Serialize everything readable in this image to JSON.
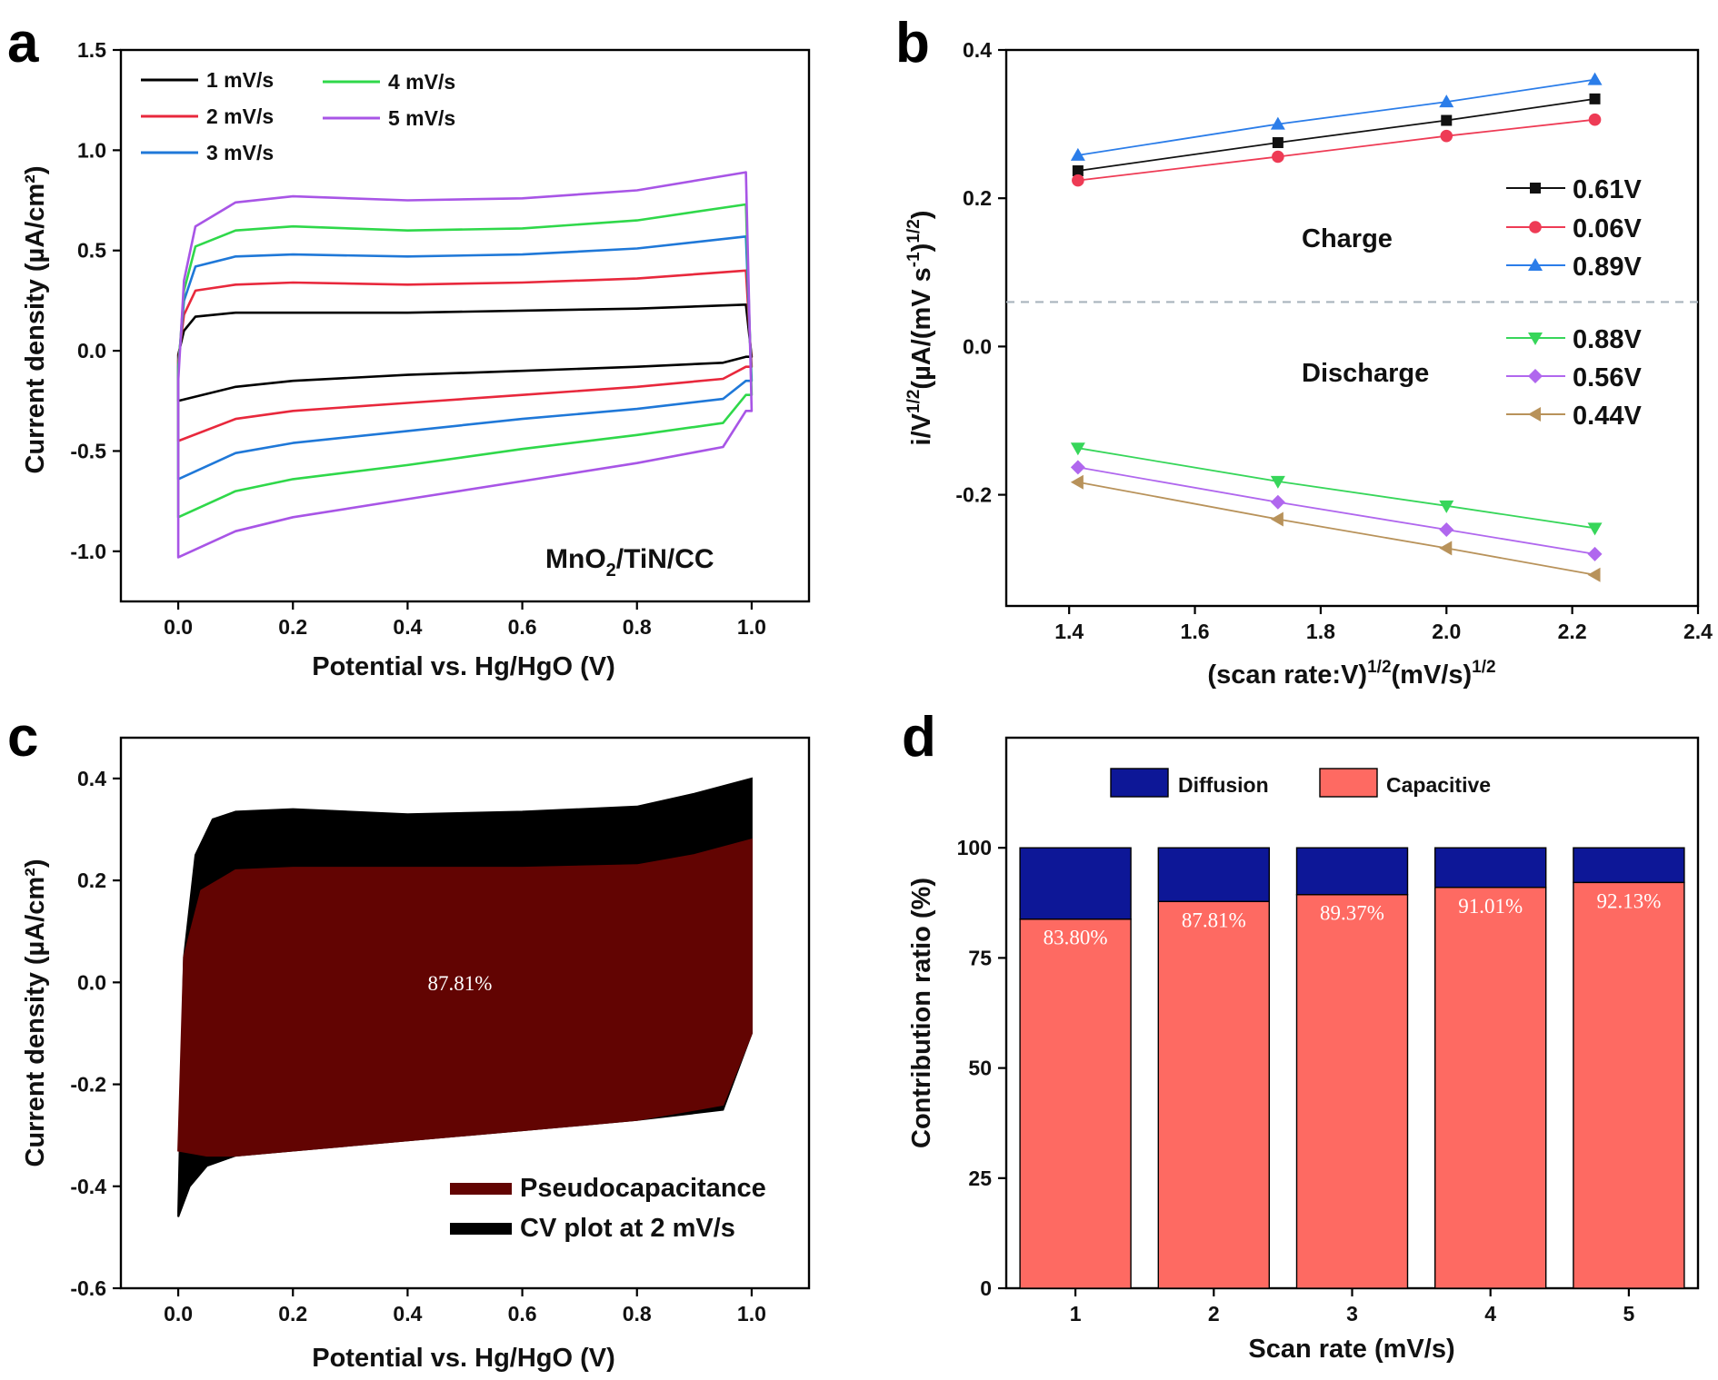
{
  "figure": {
    "panels": [
      {
        "letter": "a"
      },
      {
        "letter": "b"
      },
      {
        "letter": "c"
      },
      {
        "letter": "d"
      }
    ]
  },
  "chart_data": [
    {
      "id": "a",
      "type": "line",
      "xlabel": "Potential vs. Hg/HgO (V)",
      "ylabel": "Current density (µA/cm²)",
      "xlim": [
        -0.1,
        1.1
      ],
      "ylim": [
        -1.25,
        1.5
      ],
      "xticks": [
        0.0,
        0.2,
        0.4,
        0.6,
        0.8,
        1.0
      ],
      "xtick_labels": [
        "0.0",
        "0.2",
        "0.4",
        "0.6",
        "0.8",
        "1.0"
      ],
      "yticks": [
        -1.0,
        -0.5,
        0.0,
        0.5,
        1.0,
        1.5
      ],
      "ytick_labels": [
        "-1.0",
        "-0.5",
        "0.0",
        "0.5",
        "1.0",
        "1.5"
      ],
      "annotation": "MnO₂/TiN/CC",
      "legend_position": "top-left",
      "series": [
        {
          "name": "1 mV/s",
          "color": "#000000",
          "upper_x": [
            0.0,
            0.01,
            0.03,
            0.1,
            0.2,
            0.4,
            0.6,
            0.8,
            0.99
          ],
          "upper_y": [
            -0.02,
            0.1,
            0.17,
            0.19,
            0.19,
            0.19,
            0.2,
            0.21,
            0.23
          ],
          "lower_x": [
            0.0,
            0.1,
            0.2,
            0.4,
            0.6,
            0.8,
            0.95,
            0.99
          ],
          "lower_y": [
            -0.25,
            -0.18,
            -0.15,
            -0.12,
            -0.1,
            -0.08,
            -0.06,
            -0.03
          ]
        },
        {
          "name": "2 mV/s",
          "color": "#e8283c",
          "upper_x": [
            0.0,
            0.01,
            0.03,
            0.1,
            0.2,
            0.4,
            0.6,
            0.8,
            0.99
          ],
          "upper_y": [
            -0.05,
            0.18,
            0.3,
            0.33,
            0.34,
            0.33,
            0.34,
            0.36,
            0.4
          ],
          "lower_x": [
            0.0,
            0.1,
            0.2,
            0.4,
            0.6,
            0.8,
            0.95,
            0.99
          ],
          "lower_y": [
            -0.45,
            -0.34,
            -0.3,
            -0.26,
            -0.22,
            -0.18,
            -0.14,
            -0.08
          ]
        },
        {
          "name": "3 mV/s",
          "color": "#1f78d8",
          "upper_x": [
            0.0,
            0.01,
            0.03,
            0.1,
            0.2,
            0.4,
            0.6,
            0.8,
            0.99
          ],
          "upper_y": [
            -0.08,
            0.25,
            0.42,
            0.47,
            0.48,
            0.47,
            0.48,
            0.51,
            0.57
          ],
          "lower_x": [
            0.0,
            0.1,
            0.2,
            0.4,
            0.6,
            0.8,
            0.95,
            0.99
          ],
          "lower_y": [
            -0.64,
            -0.51,
            -0.46,
            -0.4,
            -0.34,
            -0.29,
            -0.24,
            -0.15
          ]
        },
        {
          "name": "4 mV/s",
          "color": "#2fd84a",
          "upper_x": [
            0.0,
            0.01,
            0.03,
            0.1,
            0.2,
            0.4,
            0.6,
            0.8,
            0.99
          ],
          "upper_y": [
            -0.1,
            0.3,
            0.52,
            0.6,
            0.62,
            0.6,
            0.61,
            0.65,
            0.73
          ],
          "lower_x": [
            0.0,
            0.1,
            0.2,
            0.4,
            0.6,
            0.8,
            0.95,
            0.99
          ],
          "lower_y": [
            -0.83,
            -0.7,
            -0.64,
            -0.57,
            -0.49,
            -0.42,
            -0.36,
            -0.22
          ]
        },
        {
          "name": "5 mV/s",
          "color": "#a855e6",
          "upper_x": [
            0.0,
            0.01,
            0.03,
            0.1,
            0.2,
            0.4,
            0.6,
            0.8,
            0.99
          ],
          "upper_y": [
            -0.15,
            0.35,
            0.62,
            0.74,
            0.77,
            0.75,
            0.76,
            0.8,
            0.89
          ],
          "lower_x": [
            0.0,
            0.1,
            0.2,
            0.4,
            0.6,
            0.8,
            0.95,
            0.99
          ],
          "lower_y": [
            -1.03,
            -0.9,
            -0.83,
            -0.74,
            -0.65,
            -0.56,
            -0.48,
            -0.3
          ]
        }
      ]
    },
    {
      "id": "b",
      "type": "line",
      "xlabel": "(scan rate:V)¹ᐟ²(mV/s)¹ᐟ²",
      "xlabel_parts": [
        "(scan rate:V)",
        "1/2",
        "(mV/s)",
        "1/2"
      ],
      "ylabel_parts": [
        "i/V",
        "1/2",
        "(µA/(mV s",
        "-1",
        ")",
        "1/2",
        ")"
      ],
      "xlim": [
        1.3,
        2.4
      ],
      "ylim": [
        -0.35,
        0.4
      ],
      "xticks": [
        1.4,
        1.6,
        1.8,
        2.0,
        2.2,
        2.4
      ],
      "xtick_labels": [
        "1.4",
        "1.6",
        "1.8",
        "2.0",
        "2.2",
        "2.4"
      ],
      "yticks": [
        -0.2,
        0.0,
        0.2,
        0.4
      ],
      "ytick_labels": [
        "-0.2",
        "0.0",
        "0.2",
        "0.4"
      ],
      "divider_y": 0.06,
      "group_labels": {
        "charge": "Charge",
        "discharge": "Discharge"
      },
      "legend_position": "right",
      "x": [
        1.414,
        1.732,
        2.0,
        2.236
      ],
      "series": [
        {
          "name": "0.61V",
          "color": "#111111",
          "marker": "square",
          "values": [
            0.237,
            0.275,
            0.305,
            0.334
          ]
        },
        {
          "name": "0.06V",
          "color": "#ee3b55",
          "marker": "circle",
          "values": [
            0.224,
            0.256,
            0.284,
            0.306
          ]
        },
        {
          "name": "0.89V",
          "color": "#2b7de9",
          "marker": "triangle-up",
          "values": [
            0.258,
            0.3,
            0.33,
            0.36
          ]
        },
        {
          "name": "0.88V",
          "color": "#37d65a",
          "marker": "triangle-down",
          "values": [
            -0.137,
            -0.182,
            -0.215,
            -0.245
          ]
        },
        {
          "name": "0.56V",
          "color": "#b067ee",
          "marker": "diamond",
          "values": [
            -0.163,
            -0.21,
            -0.247,
            -0.28
          ]
        },
        {
          "name": "0.44V",
          "color": "#b8925a",
          "marker": "triangle-left",
          "values": [
            -0.183,
            -0.233,
            -0.272,
            -0.308
          ]
        }
      ]
    },
    {
      "id": "c",
      "type": "area",
      "xlabel": "Potential vs. Hg/HgO (V)",
      "ylabel": "Current density (µA/cm²)",
      "xlim": [
        -0.1,
        1.1
      ],
      "ylim": [
        -0.6,
        0.48
      ],
      "xticks": [
        0.0,
        0.2,
        0.4,
        0.6,
        0.8,
        1.0
      ],
      "xtick_labels": [
        "0.0",
        "0.2",
        "0.4",
        "0.6",
        "0.8",
        "1.0"
      ],
      "yticks": [
        -0.6,
        -0.4,
        -0.2,
        0.0,
        0.2,
        0.4
      ],
      "ytick_labels": [
        "-0.6",
        "-0.4",
        "-0.2",
        "0.0",
        "0.2",
        "0.4"
      ],
      "center_label": "87.81%",
      "legend_position": "bottom-right",
      "series": [
        {
          "name": "CV plot at 2 mV/s",
          "color": "#000000",
          "upper_x": [
            0.0,
            0.01,
            0.03,
            0.06,
            0.1,
            0.2,
            0.4,
            0.6,
            0.8,
            0.9,
            1.0
          ],
          "upper_y": [
            -0.45,
            0.05,
            0.25,
            0.32,
            0.335,
            0.34,
            0.33,
            0.335,
            0.345,
            0.37,
            0.4
          ],
          "lower_x": [
            0.0,
            0.02,
            0.05,
            0.1,
            0.2,
            0.4,
            0.6,
            0.8,
            0.95,
            1.0
          ],
          "lower_y": [
            -0.46,
            -0.4,
            -0.36,
            -0.34,
            -0.33,
            -0.31,
            -0.29,
            -0.27,
            -0.25,
            -0.1
          ]
        },
        {
          "name": "Pseudocapacitance",
          "color": "#620402",
          "upper_x": [
            0.0,
            0.01,
            0.04,
            0.1,
            0.2,
            0.4,
            0.6,
            0.8,
            0.9,
            1.0
          ],
          "upper_y": [
            -0.33,
            0.05,
            0.18,
            0.22,
            0.225,
            0.225,
            0.225,
            0.23,
            0.25,
            0.28
          ],
          "lower_x": [
            0.0,
            0.05,
            0.1,
            0.2,
            0.4,
            0.6,
            0.8,
            0.95,
            1.0
          ],
          "lower_y": [
            -0.33,
            -0.34,
            -0.34,
            -0.33,
            -0.31,
            -0.29,
            -0.27,
            -0.24,
            -0.1
          ]
        }
      ]
    },
    {
      "id": "d",
      "type": "bar",
      "xlabel": "Scan rate (mV/s)",
      "ylabel": "Contribution ratio (%)",
      "categories": [
        "1",
        "2",
        "3",
        "4",
        "5"
      ],
      "ylim": [
        0,
        125
      ],
      "yticks": [
        0,
        25,
        50,
        75,
        100
      ],
      "ytick_labels": [
        "0",
        "25",
        "50",
        "75",
        "100"
      ],
      "legend_position": "top",
      "series": [
        {
          "name": "Capacitive",
          "color": "#fe6a62",
          "values": [
            83.8,
            87.81,
            89.37,
            91.01,
            92.13
          ],
          "labels": [
            "83.80%",
            "87.81%",
            "89.37%",
            "91.01%",
            "92.13%"
          ]
        },
        {
          "name": "Diffusion",
          "color": "#0d1797",
          "values": [
            16.2,
            12.19,
            10.63,
            8.99,
            7.87
          ]
        }
      ]
    }
  ]
}
